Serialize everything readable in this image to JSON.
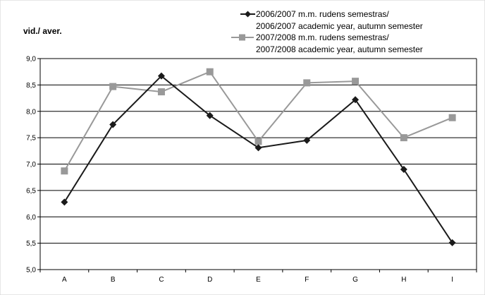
{
  "chart_data": {
    "type": "line",
    "title": "",
    "xlabel": "",
    "ylabel": "vid./ aver.",
    "categories": [
      "A",
      "B",
      "C",
      "D",
      "E",
      "F",
      "G",
      "H",
      "I"
    ],
    "ylim": [
      5.0,
      9.0
    ],
    "yticks": [
      "5,0",
      "5,5",
      "6,0",
      "6,5",
      "7,0",
      "7,5",
      "8,0",
      "8,5",
      "9,0"
    ],
    "grid": "horizontal",
    "legend_position": "top-right",
    "series": [
      {
        "name_line1": "2006/2007 m.m. rudens semestras/",
        "name_line2": "2006/2007 academic year, autumn semester",
        "marker": "diamond",
        "color": "#1a1a1a",
        "values": [
          6.28,
          7.75,
          8.67,
          7.92,
          7.31,
          7.45,
          8.22,
          6.9,
          5.51
        ]
      },
      {
        "name_line1": "2007/2008 m.m. rudens semestras/",
        "name_line2": "2007/2008 academic year, autumn semester",
        "marker": "square",
        "color": "#999999",
        "values": [
          6.87,
          8.47,
          8.37,
          8.75,
          7.43,
          8.54,
          8.57,
          7.5,
          7.88
        ]
      }
    ]
  }
}
